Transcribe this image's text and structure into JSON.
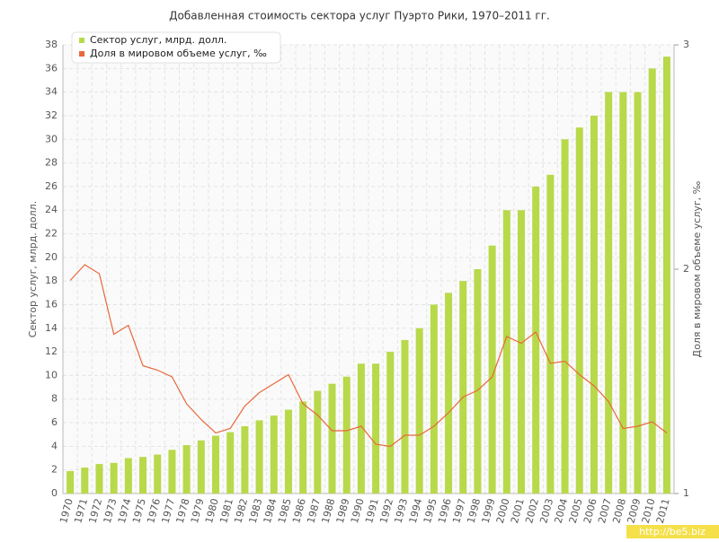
{
  "chart_data": {
    "type": "bar",
    "title": "Добавленная стоимость сектора услуг Пуэрто Рики, 1970–2011 гг.",
    "y_label": "Сектор услуг, млрд. долл.",
    "y2_label": "Доля в мировом объеме услуг, ‰",
    "watermark": "http://be5.biz",
    "categories": [
      "1970",
      "1971",
      "1972",
      "1973",
      "1974",
      "1975",
      "1976",
      "1977",
      "1978",
      "1979",
      "1980",
      "1981",
      "1982",
      "1983",
      "1984",
      "1985",
      "1986",
      "1987",
      "1988",
      "1989",
      "1990",
      "1991",
      "1992",
      "1993",
      "1994",
      "1995",
      "1996",
      "1997",
      "1998",
      "1999",
      "2000",
      "2001",
      "2002",
      "2003",
      "2004",
      "2005",
      "2006",
      "2007",
      "2008",
      "2009",
      "2010",
      "2011"
    ],
    "series": [
      {
        "name": "Сектор услуг, млрд. долл.",
        "type": "bar",
        "color": "#b8d94a",
        "values": [
          1.9,
          2.2,
          2.5,
          2.6,
          3.0,
          3.1,
          3.3,
          3.7,
          4.1,
          4.5,
          4.9,
          5.2,
          5.7,
          6.2,
          6.6,
          7.1,
          7.8,
          8.7,
          9.3,
          9.9,
          11,
          11,
          12,
          13,
          14,
          16,
          17,
          18,
          19,
          21,
          24,
          24,
          26,
          27,
          30,
          31,
          32,
          34,
          34,
          34,
          36,
          37
        ]
      },
      {
        "name": "Доля в мировом объеме услуг, ‰",
        "type": "line",
        "axis": "y2",
        "color": "#e8683a",
        "values": [
          1.95,
          2.02,
          1.98,
          1.71,
          1.75,
          1.57,
          1.55,
          1.52,
          1.4,
          1.33,
          1.27,
          1.29,
          1.39,
          1.45,
          1.49,
          1.53,
          1.4,
          1.35,
          1.28,
          1.28,
          1.3,
          1.22,
          1.21,
          1.26,
          1.26,
          1.3,
          1.36,
          1.43,
          1.46,
          1.52,
          1.7,
          1.67,
          1.72,
          1.58,
          1.59,
          1.53,
          1.48,
          1.41,
          1.29,
          1.3,
          1.32,
          1.27
        ]
      }
    ],
    "ylim": [
      0,
      38
    ],
    "yticks": [
      0,
      2,
      4,
      6,
      8,
      10,
      12,
      14,
      16,
      18,
      20,
      22,
      24,
      26,
      28,
      30,
      32,
      34,
      36,
      38
    ],
    "y2lim": [
      1,
      3
    ],
    "y2ticks": [
      1,
      2,
      3
    ],
    "grid": true,
    "legend": "top-left"
  }
}
